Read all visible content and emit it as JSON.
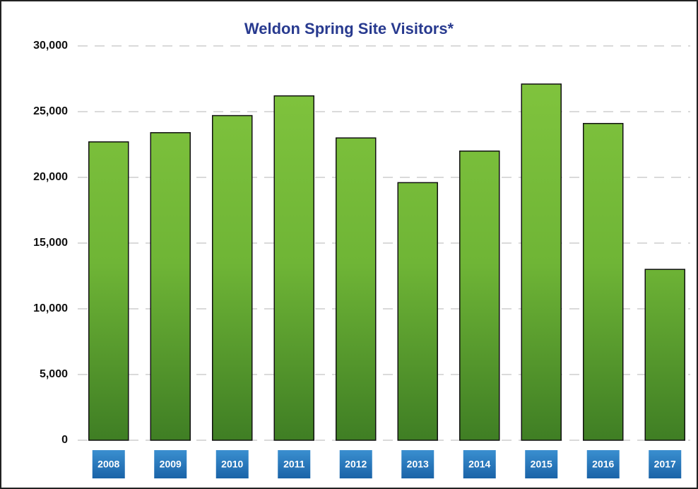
{
  "chart_data": {
    "type": "bar",
    "title": "Weldon Spring Site Visitors*",
    "categories": [
      "2008",
      "2009",
      "2010",
      "2011",
      "2012",
      "2013",
      "2014",
      "2015",
      "2016",
      "2017"
    ],
    "values": [
      22700,
      23400,
      24700,
      26200,
      23000,
      19600,
      22000,
      27100,
      24100,
      13000
    ],
    "color": "#6fb536",
    "ylim": [
      0,
      30000
    ],
    "yticks": [
      0,
      {
        "value": 5000,
        "label": "5,000"
      },
      {
        "value": 10000,
        "label": "10,000"
      },
      {
        "value": 15000,
        "label": "15,000"
      },
      {
        "value": 20000,
        "label": "20,000"
      },
      {
        "value": 25000,
        "label": "25,000"
      },
      {
        "value": 30000,
        "label": "30,000"
      }
    ],
    "grid": true
  }
}
